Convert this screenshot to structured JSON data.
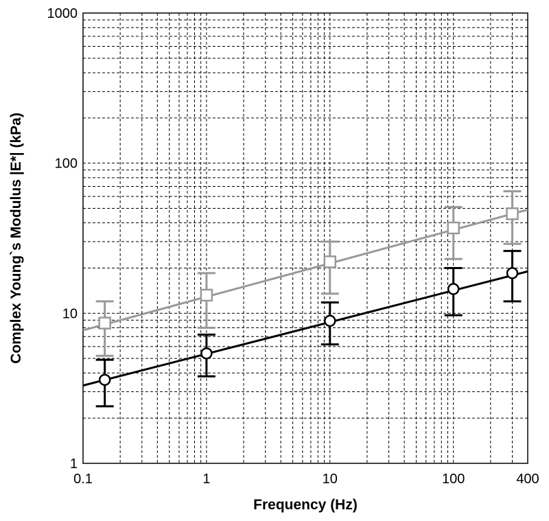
{
  "chart_data": {
    "type": "scatter",
    "xlabel": "Frequency (Hz)",
    "ylabel": "Complex Young`s Modulus |E*| (kPa)",
    "xscale": "log",
    "yscale": "log",
    "xlim": [
      0.1,
      400
    ],
    "ylim": [
      1,
      1000
    ],
    "grid": true,
    "x_ticks": [
      {
        "value": 0.1,
        "label": "0.1"
      },
      {
        "value": 1,
        "label": "1"
      },
      {
        "value": 10,
        "label": "10"
      },
      {
        "value": 100,
        "label": "100"
      },
      {
        "value": 400,
        "label": "400"
      }
    ],
    "y_ticks": [
      {
        "value": 1,
        "label": "1"
      },
      {
        "value": 10,
        "label": "10"
      },
      {
        "value": 100,
        "label": "100"
      },
      {
        "value": 1000,
        "label": "1000"
      }
    ],
    "series": [
      {
        "marker": "square",
        "color": "#999999",
        "points": [
          {
            "x": 0.15,
            "y": 8.6,
            "y_low": 5.2,
            "y_high": 12
          },
          {
            "x": 1,
            "y": 13.2,
            "y_low": 8,
            "y_high": 18.5
          },
          {
            "x": 10,
            "y": 22,
            "y_low": 13.5,
            "y_high": 30
          },
          {
            "x": 100,
            "y": 37,
            "y_low": 23,
            "y_high": 51
          },
          {
            "x": 300,
            "y": 46,
            "y_low": 29,
            "y_high": 65
          }
        ],
        "fit_line": {
          "x": [
            0.1,
            400
          ],
          "y": [
            7.7,
            49
          ]
        }
      },
      {
        "marker": "circle",
        "color": "#000000",
        "points": [
          {
            "x": 0.15,
            "y": 3.6,
            "y_low": 2.4,
            "y_high": 4.9
          },
          {
            "x": 1,
            "y": 5.4,
            "y_low": 3.8,
            "y_high": 7.2
          },
          {
            "x": 10,
            "y": 8.9,
            "y_low": 6.2,
            "y_high": 11.8
          },
          {
            "x": 100,
            "y": 14.5,
            "y_low": 9.7,
            "y_high": 20
          },
          {
            "x": 300,
            "y": 18.5,
            "y_low": 12,
            "y_high": 26
          }
        ],
        "fit_line": {
          "x": [
            0.1,
            400
          ],
          "y": [
            3.3,
            19
          ]
        }
      }
    ]
  }
}
